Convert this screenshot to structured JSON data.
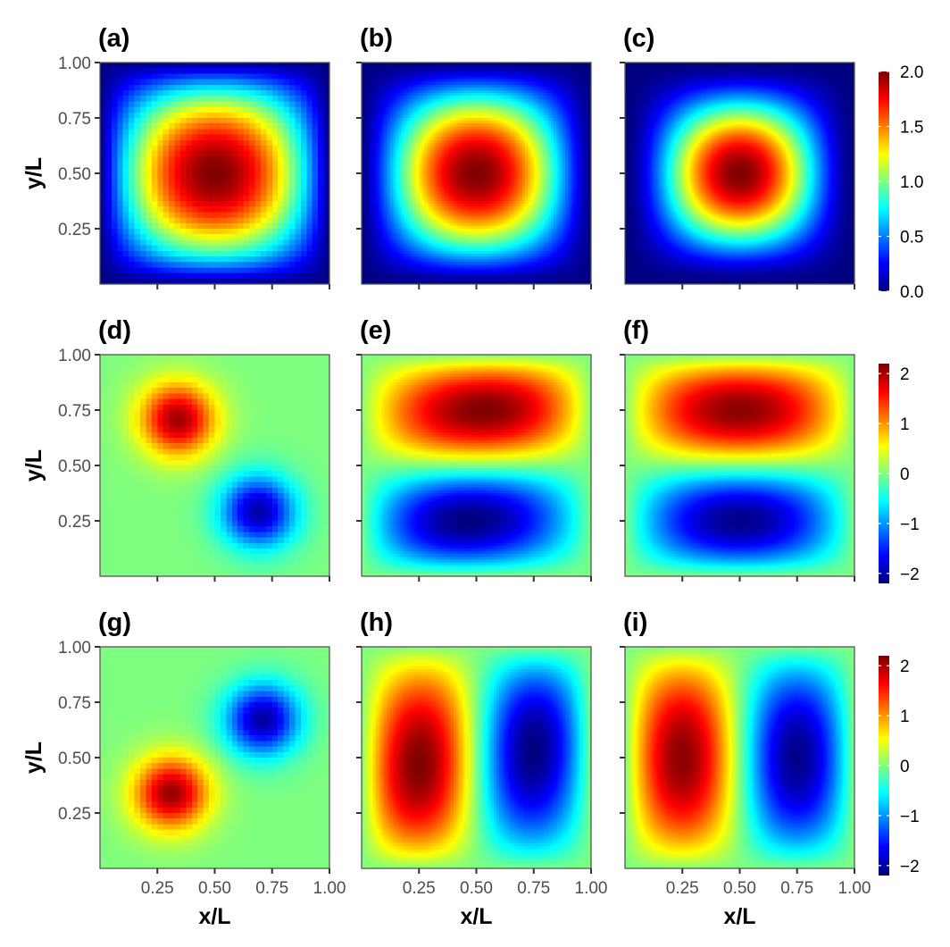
{
  "chart_data": [
    {
      "row": 0,
      "type": "heatmap",
      "panels": [
        {
          "label": "(a)",
          "grid": 40,
          "field": "ground",
          "params": {
            "p": 0.95,
            "q": 1.0
          }
        },
        {
          "label": "(b)",
          "grid": 80,
          "field": "ground",
          "params": {
            "p": 1.25,
            "q": 1.25
          }
        },
        {
          "label": "(c)",
          "grid": 160,
          "field": "ground",
          "params": {
            "p": 1.7,
            "q": 1.7
          }
        }
      ],
      "xlim": [
        0,
        1
      ],
      "ylim": [
        0,
        1
      ],
      "colorbar": {
        "min": 0.0,
        "max": 2.0,
        "ticks": [
          0.0,
          0.5,
          1.0,
          1.5,
          2.0
        ],
        "tick_labels": [
          "0.0",
          "0.5",
          "1.0",
          "1.5",
          "2.0"
        ]
      }
    },
    {
      "row": 1,
      "type": "heatmap",
      "panels": [
        {
          "label": "(d)",
          "grid": 40,
          "field": "diag",
          "params": {
            "amp": 2.3
          }
        },
        {
          "label": "(e)",
          "grid": 80,
          "field": "vert",
          "params": {
            "amp": 2.2,
            "skew": 0.22
          }
        },
        {
          "label": "(f)",
          "grid": 160,
          "field": "vert",
          "params": {
            "amp": 2.15,
            "skew": 0.0
          }
        }
      ],
      "xlim": [
        0,
        1
      ],
      "ylim": [
        0,
        1
      ],
      "colorbar": {
        "min": -2.2,
        "max": 2.2,
        "ticks": [
          -2,
          -1,
          0,
          1,
          2
        ],
        "tick_labels": [
          "−2",
          "−1",
          "0",
          "1",
          "2"
        ]
      }
    },
    {
      "row": 2,
      "type": "heatmap",
      "panels": [
        {
          "label": "(g)",
          "grid": 40,
          "field": "anti",
          "params": {
            "amp": 2.3
          }
        },
        {
          "label": "(h)",
          "grid": 80,
          "field": "horiz",
          "params": {
            "amp": 2.2,
            "skew": 0.22
          }
        },
        {
          "label": "(i)",
          "grid": 160,
          "field": "horiz",
          "params": {
            "amp": 2.15,
            "skew": 0.0
          }
        }
      ],
      "xlim": [
        0,
        1
      ],
      "ylim": [
        0,
        1
      ],
      "colorbar": {
        "min": -2.2,
        "max": 2.2,
        "ticks": [
          -2,
          -1,
          0,
          1,
          2
        ],
        "tick_labels": [
          "−2",
          "−1",
          "0",
          "1",
          "2"
        ]
      }
    }
  ],
  "axes": {
    "x_ticks": [
      0.25,
      0.5,
      0.75,
      1.0
    ],
    "x_tick_labels": [
      "0.25",
      "0.50",
      "0.75",
      "1.00"
    ],
    "y_ticks": [
      0.25,
      0.5,
      0.75,
      1.0
    ],
    "y_tick_labels": [
      "0.25",
      "0.50",
      "0.75",
      "1.00"
    ],
    "xlabel": "x/L",
    "ylabel": "y/L"
  },
  "colormap": [
    "#00007F",
    "#0000FF",
    "#007FFF",
    "#00FFFF",
    "#7FFF7F",
    "#FFFF00",
    "#FF7F00",
    "#FF0000",
    "#7F0000"
  ],
  "colors": {
    "frame": "#555555",
    "tick_text": "#4d4d4d"
  }
}
